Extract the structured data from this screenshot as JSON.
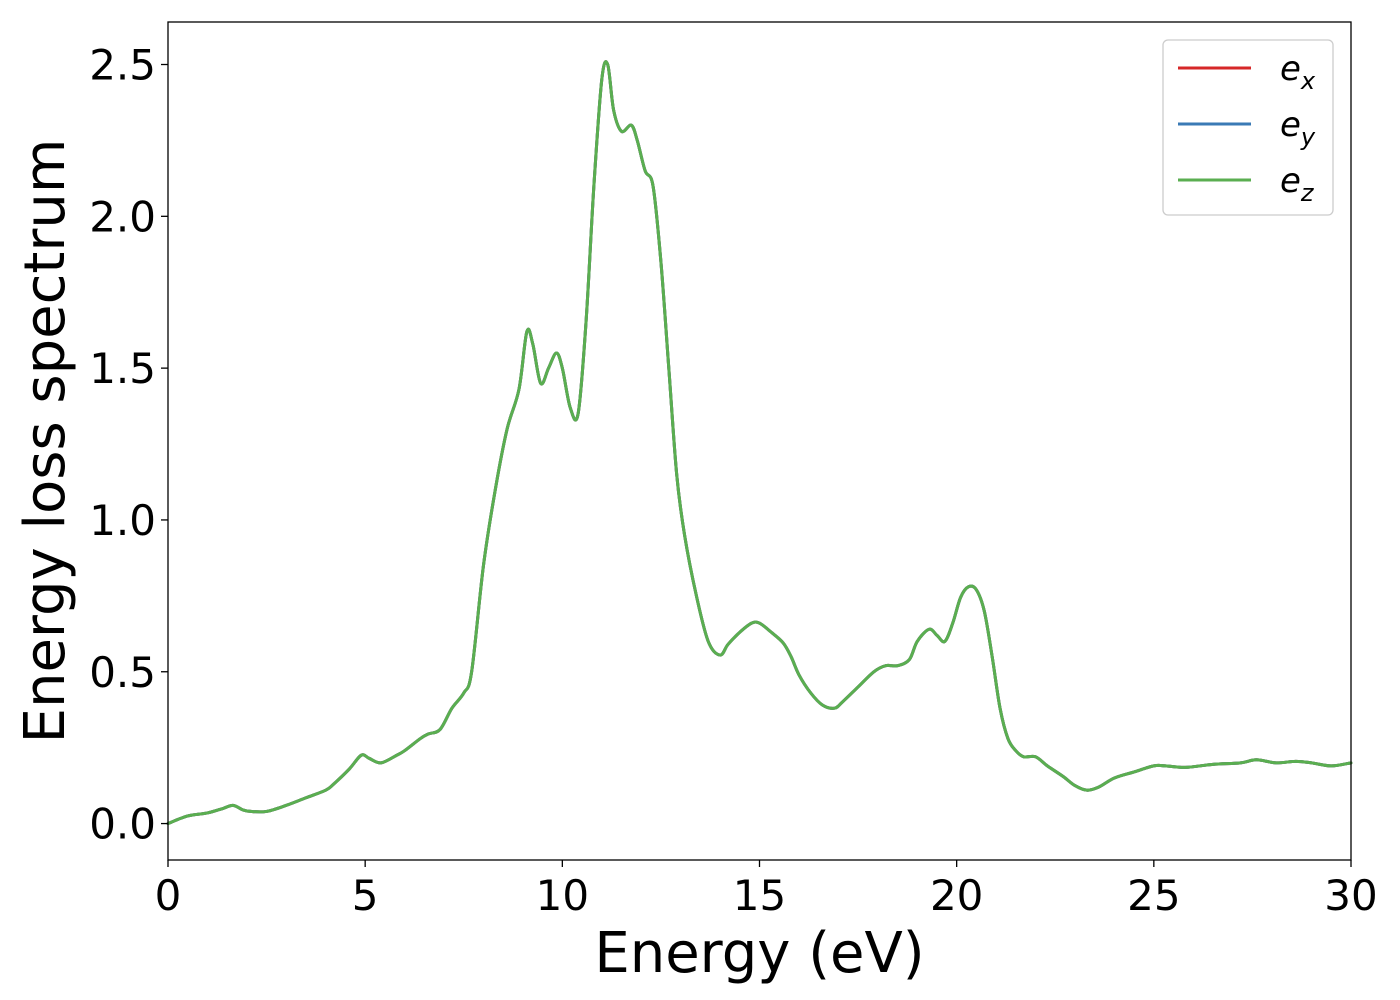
{
  "chart_data": {
    "type": "line",
    "title": "",
    "xlabel": "Energy (eV)",
    "ylabel": "Energy loss spectrum",
    "xlim": [
      0,
      30
    ],
    "ylim": [
      -0.12,
      2.64
    ],
    "xticks": [
      0,
      5,
      10,
      15,
      20,
      25,
      30
    ],
    "xtick_labels": [
      "0",
      "5",
      "10",
      "15",
      "20",
      "25",
      "30"
    ],
    "yticks": [
      0.0,
      0.5,
      1.0,
      1.5,
      2.0,
      2.5
    ],
    "ytick_labels": [
      "0.0",
      "0.5",
      "1.0",
      "1.5",
      "2.0",
      "2.5"
    ],
    "grid": false,
    "legend_position": "top-right",
    "x": [
      0,
      0.5,
      1.0,
      1.4,
      1.65,
      1.9,
      2.1,
      2.5,
      3.0,
      3.5,
      4.0,
      4.2,
      4.6,
      4.9,
      5.1,
      5.4,
      5.8,
      6.0,
      6.4,
      6.6,
      6.9,
      7.2,
      7.5,
      7.7,
      8.0,
      8.3,
      8.6,
      8.9,
      9.1,
      9.25,
      9.45,
      9.65,
      9.85,
      10.0,
      10.2,
      10.4,
      10.6,
      10.8,
      11.0,
      11.15,
      11.3,
      11.5,
      11.75,
      11.9,
      12.1,
      12.3,
      12.5,
      12.7,
      12.9,
      13.1,
      13.4,
      13.7,
      14.0,
      14.2,
      14.5,
      14.8,
      15.0,
      15.3,
      15.6,
      15.8,
      16.0,
      16.3,
      16.6,
      16.9,
      17.1,
      17.5,
      17.9,
      18.2,
      18.5,
      18.8,
      19.0,
      19.3,
      19.5,
      19.7,
      19.9,
      20.1,
      20.3,
      20.5,
      20.7,
      20.9,
      21.1,
      21.3,
      21.5,
      21.7,
      22.0,
      22.3,
      22.7,
      23.0,
      23.3,
      23.6,
      24.0,
      24.5,
      25.0,
      25.3,
      25.8,
      26.5,
      27.2,
      27.6,
      28.1,
      28.6,
      29.0,
      29.5,
      30.0
    ],
    "series": [
      {
        "name": "e_x",
        "name_base": "e",
        "name_sub": "x",
        "color": "#d62728",
        "values": [
          0.0,
          0.025,
          0.035,
          0.05,
          0.06,
          0.045,
          0.04,
          0.04,
          0.06,
          0.085,
          0.11,
          0.13,
          0.18,
          0.225,
          0.215,
          0.2,
          0.225,
          0.24,
          0.28,
          0.295,
          0.31,
          0.38,
          0.43,
          0.5,
          0.85,
          1.1,
          1.3,
          1.43,
          1.62,
          1.58,
          1.45,
          1.5,
          1.55,
          1.5,
          1.37,
          1.35,
          1.65,
          2.1,
          2.45,
          2.5,
          2.35,
          2.28,
          2.3,
          2.25,
          2.15,
          2.1,
          1.85,
          1.5,
          1.15,
          0.95,
          0.75,
          0.6,
          0.555,
          0.59,
          0.63,
          0.66,
          0.66,
          0.63,
          0.595,
          0.55,
          0.49,
          0.43,
          0.39,
          0.38,
          0.4,
          0.45,
          0.5,
          0.52,
          0.52,
          0.54,
          0.6,
          0.64,
          0.62,
          0.6,
          0.66,
          0.745,
          0.78,
          0.77,
          0.7,
          0.55,
          0.38,
          0.28,
          0.24,
          0.22,
          0.22,
          0.19,
          0.155,
          0.125,
          0.11,
          0.12,
          0.15,
          0.17,
          0.19,
          0.19,
          0.185,
          0.195,
          0.2,
          0.21,
          0.2,
          0.205,
          0.2,
          0.19,
          0.2
        ]
      },
      {
        "name": "e_y",
        "name_base": "e",
        "name_sub": "y",
        "color": "#3a7ab5",
        "values": [
          0.0,
          0.025,
          0.035,
          0.05,
          0.06,
          0.045,
          0.04,
          0.04,
          0.06,
          0.085,
          0.11,
          0.13,
          0.18,
          0.225,
          0.215,
          0.2,
          0.225,
          0.24,
          0.28,
          0.295,
          0.31,
          0.38,
          0.43,
          0.5,
          0.85,
          1.1,
          1.3,
          1.43,
          1.62,
          1.58,
          1.45,
          1.5,
          1.55,
          1.5,
          1.37,
          1.35,
          1.65,
          2.1,
          2.45,
          2.5,
          2.35,
          2.28,
          2.3,
          2.25,
          2.15,
          2.1,
          1.85,
          1.5,
          1.15,
          0.95,
          0.75,
          0.6,
          0.555,
          0.59,
          0.63,
          0.66,
          0.66,
          0.63,
          0.595,
          0.55,
          0.49,
          0.43,
          0.39,
          0.38,
          0.4,
          0.45,
          0.5,
          0.52,
          0.52,
          0.54,
          0.6,
          0.64,
          0.62,
          0.6,
          0.66,
          0.745,
          0.78,
          0.77,
          0.7,
          0.55,
          0.38,
          0.28,
          0.24,
          0.22,
          0.22,
          0.19,
          0.155,
          0.125,
          0.11,
          0.12,
          0.15,
          0.17,
          0.19,
          0.19,
          0.185,
          0.195,
          0.2,
          0.21,
          0.2,
          0.205,
          0.2,
          0.19,
          0.2
        ]
      },
      {
        "name": "e_z",
        "name_base": "e",
        "name_sub": "z",
        "color": "#5aae50",
        "values": [
          0.0,
          0.025,
          0.035,
          0.05,
          0.06,
          0.045,
          0.04,
          0.04,
          0.06,
          0.085,
          0.11,
          0.13,
          0.18,
          0.225,
          0.215,
          0.2,
          0.225,
          0.24,
          0.28,
          0.295,
          0.31,
          0.38,
          0.43,
          0.5,
          0.85,
          1.1,
          1.3,
          1.43,
          1.62,
          1.58,
          1.45,
          1.5,
          1.55,
          1.5,
          1.37,
          1.35,
          1.65,
          2.1,
          2.45,
          2.5,
          2.35,
          2.28,
          2.3,
          2.25,
          2.15,
          2.1,
          1.85,
          1.5,
          1.15,
          0.95,
          0.75,
          0.6,
          0.555,
          0.59,
          0.63,
          0.66,
          0.66,
          0.63,
          0.595,
          0.55,
          0.49,
          0.43,
          0.39,
          0.38,
          0.4,
          0.45,
          0.5,
          0.52,
          0.52,
          0.54,
          0.6,
          0.64,
          0.62,
          0.6,
          0.66,
          0.745,
          0.78,
          0.77,
          0.7,
          0.55,
          0.38,
          0.28,
          0.24,
          0.22,
          0.22,
          0.19,
          0.155,
          0.125,
          0.11,
          0.12,
          0.15,
          0.17,
          0.19,
          0.19,
          0.185,
          0.195,
          0.2,
          0.21,
          0.2,
          0.205,
          0.2,
          0.19,
          0.2
        ]
      }
    ]
  }
}
